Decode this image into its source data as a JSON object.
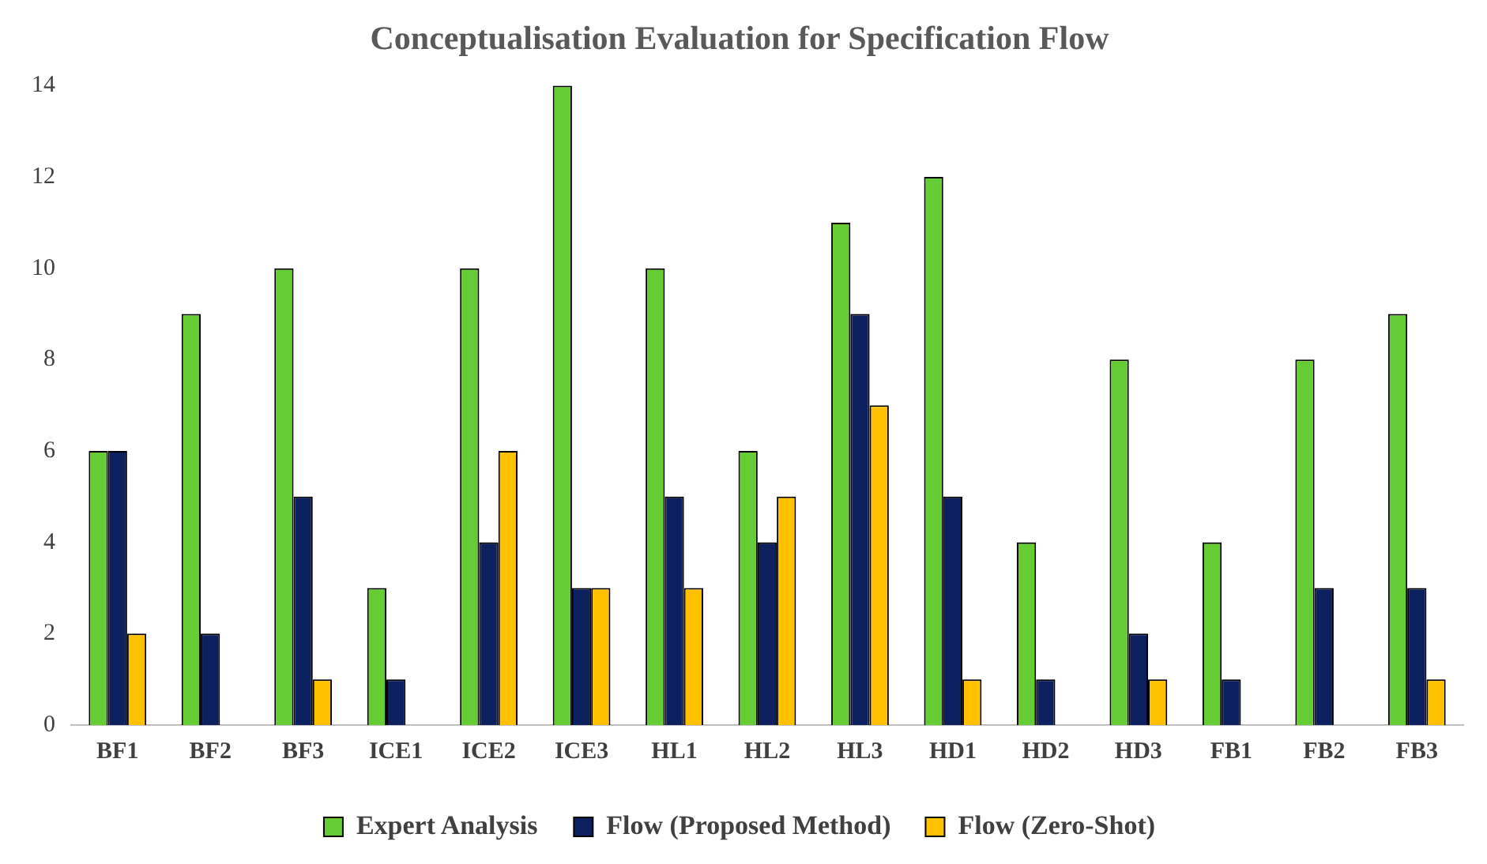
{
  "chart_data": {
    "type": "bar",
    "title": "Conceptualisation Evaluation for Specification Flow",
    "categories": [
      "BF1",
      "BF2",
      "BF3",
      "ICE1",
      "ICE2",
      "ICE3",
      "HL1",
      "HL2",
      "HL3",
      "HD1",
      "HD2",
      "HD3",
      "FB1",
      "FB2",
      "FB3"
    ],
    "series": [
      {
        "name": "Expert Analysis",
        "color": "#66cc33",
        "values": [
          6,
          9,
          10,
          3,
          10,
          14,
          10,
          6,
          11,
          12,
          4,
          8,
          4,
          8,
          9
        ]
      },
      {
        "name": "Flow (Proposed Method)",
        "color": "#0c1f5e",
        "values": [
          6,
          2,
          5,
          1,
          4,
          3,
          5,
          4,
          9,
          5,
          1,
          2,
          1,
          3,
          3
        ]
      },
      {
        "name": "Flow (Zero-Shot)",
        "color": "#ffc000",
        "values": [
          2,
          0,
          1,
          0,
          6,
          3,
          3,
          5,
          7,
          1,
          0,
          1,
          0,
          0,
          1
        ]
      }
    ],
    "ylim": [
      0,
      14
    ],
    "yticks": [
      0,
      2,
      4,
      6,
      8,
      10,
      12,
      14
    ],
    "grid": false,
    "legend": "bottom"
  }
}
